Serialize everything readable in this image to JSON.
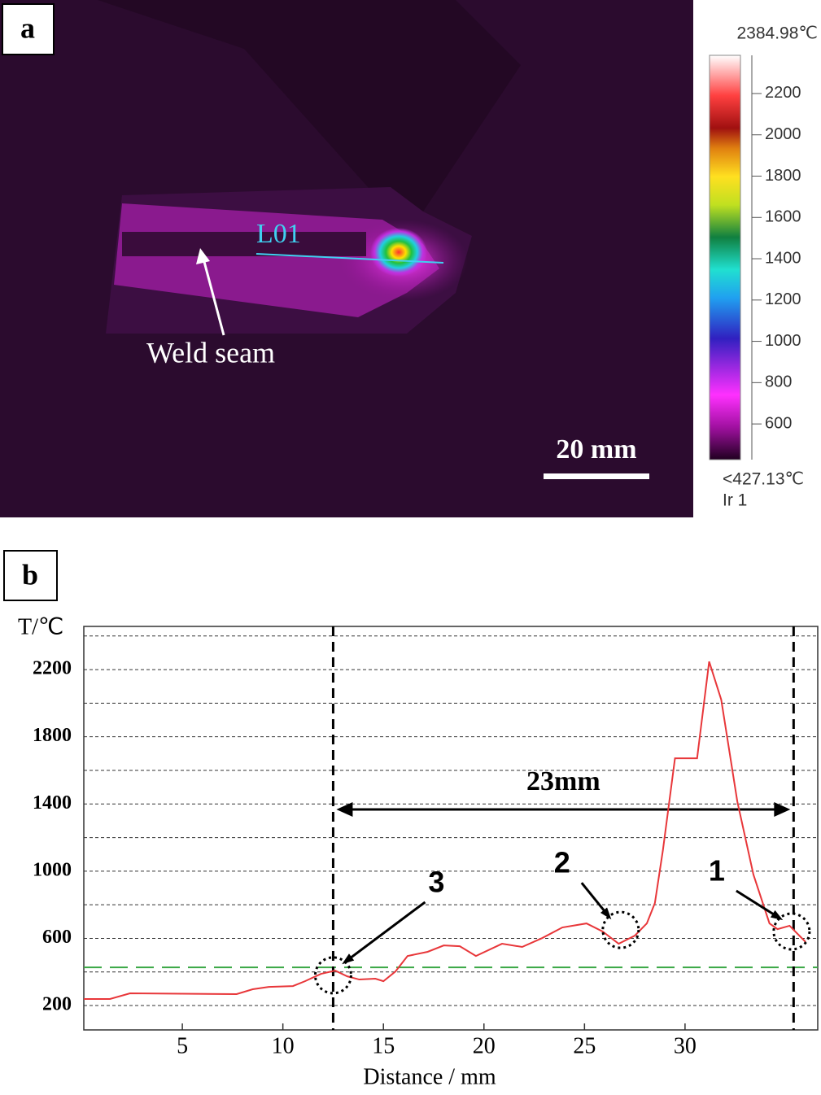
{
  "thermal_image": {
    "panel_label": "a",
    "line_label": "L01",
    "arrow_label": "Weld seam",
    "scale_bar": "20 mm",
    "colorbar": {
      "max_label": "2384.98℃",
      "min_label": "<427.13℃",
      "source_label": "Ir 1",
      "lim": [
        427.13,
        2384.98
      ],
      "ticks": [
        600,
        800,
        1000,
        1200,
        1400,
        1600,
        1800,
        2000,
        2200
      ]
    }
  },
  "chart_data": {
    "type": "line",
    "panel_label": "b",
    "ylabel": "T/℃",
    "xlabel": "Distance / mm",
    "xlim": [
      0.1,
      36.6
    ],
    "ylim": [
      55,
      2457
    ],
    "xticks": [
      5,
      10,
      15,
      20,
      25,
      30
    ],
    "yticks": [
      200,
      600,
      1000,
      1400,
      1800,
      2200
    ],
    "grid_yticks": [
      200,
      400,
      600,
      800,
      1000,
      1200,
      1400,
      1600,
      1800,
      2000,
      2200,
      2400
    ],
    "grid": true,
    "color": "#e8373a",
    "x": [
      0.1,
      1.4,
      2.4,
      7.7,
      8.5,
      9.3,
      10.5,
      11.1,
      11.9,
      12.6,
      13.2,
      13.8,
      14.6,
      15.0,
      15.6,
      16.2,
      17.2,
      18.0,
      18.8,
      19.6,
      20.9,
      21.9,
      22.9,
      23.9,
      25.1,
      25.9,
      26.7,
      27.5,
      28.1,
      28.5,
      28.9,
      29.5,
      30.6,
      31.2,
      31.8,
      32.6,
      33.4,
      34.2,
      34.6,
      35.2,
      36.0
    ],
    "values": [
      239,
      239,
      273,
      268,
      297,
      311,
      316,
      345,
      389,
      408,
      374,
      355,
      360,
      345,
      403,
      495,
      520,
      558,
      553,
      495,
      568,
      549,
      602,
      665,
      689,
      641,
      568,
      616,
      689,
      810,
      1125,
      1672,
      1672,
      2248,
      2021,
      1415,
      980,
      689,
      655,
      675,
      578
    ],
    "threshold": {
      "value": 427.13,
      "color": "#3aa845"
    },
    "span": {
      "label": "23mm",
      "x": [
        12.5,
        35.4
      ]
    },
    "annotations": [
      {
        "text": "1",
        "x": 35.3,
        "y": 641
      },
      {
        "text": "2",
        "x": 26.8,
        "y": 650
      },
      {
        "text": "3",
        "x": 12.5,
        "y": 380
      }
    ]
  }
}
